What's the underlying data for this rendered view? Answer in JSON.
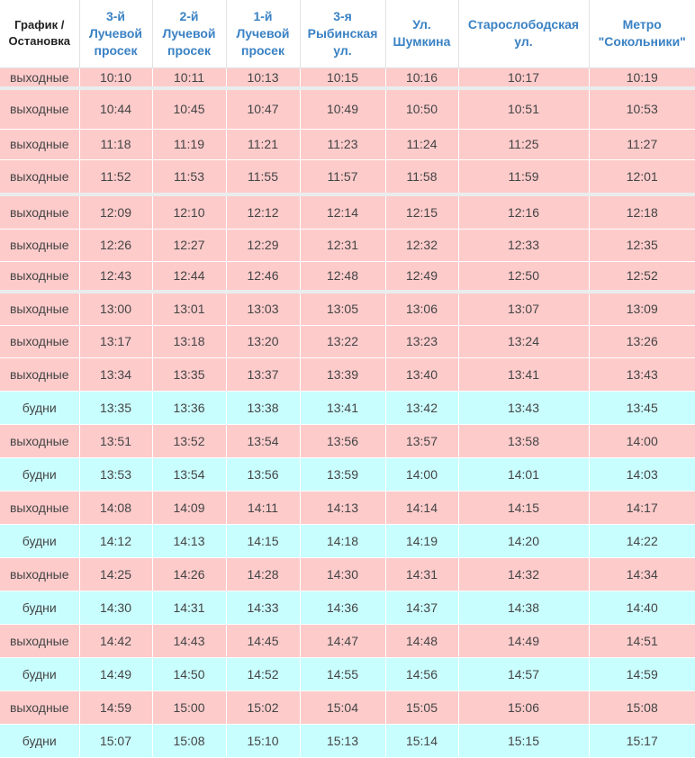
{
  "header": {
    "schedule_col": "График / Остановка",
    "stops": [
      "3-й Лучевой просек",
      "2-й Лучевой просек",
      "1-й Лучевой просек",
      "3-я Рыбинская ул.",
      "Ул. Шумкина",
      "Старослободская ул.",
      "Метро \"Сокольники\""
    ]
  },
  "colors": {
    "header_text": "#3a82c4",
    "weekend_row": "#fecbcb",
    "weekday_row": "#c9feff",
    "separator": "#e9eded"
  },
  "rows": [
    {
      "schedule": "выходные",
      "times": [
        "10:10",
        "10:11",
        "10:13",
        "10:15",
        "10:16",
        "10:17",
        "10:19"
      ]
    },
    {
      "schedule": "выходные",
      "times": [
        "10:44",
        "10:45",
        "10:47",
        "10:49",
        "10:50",
        "10:51",
        "10:53"
      ]
    },
    {
      "schedule": "выходные",
      "times": [
        "11:18",
        "11:19",
        "11:21",
        "11:23",
        "11:24",
        "11:25",
        "11:27"
      ]
    },
    {
      "schedule": "выходные",
      "times": [
        "11:52",
        "11:53",
        "11:55",
        "11:57",
        "11:58",
        "11:59",
        "12:01"
      ]
    },
    {
      "schedule": "выходные",
      "times": [
        "12:09",
        "12:10",
        "12:12",
        "12:14",
        "12:15",
        "12:16",
        "12:18"
      ]
    },
    {
      "schedule": "выходные",
      "times": [
        "12:26",
        "12:27",
        "12:29",
        "12:31",
        "12:32",
        "12:33",
        "12:35"
      ]
    },
    {
      "schedule": "выходные",
      "times": [
        "12:43",
        "12:44",
        "12:46",
        "12:48",
        "12:49",
        "12:50",
        "12:52"
      ]
    },
    {
      "schedule": "выходные",
      "times": [
        "13:00",
        "13:01",
        "13:03",
        "13:05",
        "13:06",
        "13:07",
        "13:09"
      ]
    },
    {
      "schedule": "выходные",
      "times": [
        "13:17",
        "13:18",
        "13:20",
        "13:22",
        "13:23",
        "13:24",
        "13:26"
      ]
    },
    {
      "schedule": "выходные",
      "times": [
        "13:34",
        "13:35",
        "13:37",
        "13:39",
        "13:40",
        "13:41",
        "13:43"
      ]
    },
    {
      "schedule": "будни",
      "times": [
        "13:35",
        "13:36",
        "13:38",
        "13:41",
        "13:42",
        "13:43",
        "13:45"
      ]
    },
    {
      "schedule": "выходные",
      "times": [
        "13:51",
        "13:52",
        "13:54",
        "13:56",
        "13:57",
        "13:58",
        "14:00"
      ]
    },
    {
      "schedule": "будни",
      "times": [
        "13:53",
        "13:54",
        "13:56",
        "13:59",
        "14:00",
        "14:01",
        "14:03"
      ]
    },
    {
      "schedule": "выходные",
      "times": [
        "14:08",
        "14:09",
        "14:11",
        "14:13",
        "14:14",
        "14:15",
        "14:17"
      ]
    },
    {
      "schedule": "будни",
      "times": [
        "14:12",
        "14:13",
        "14:15",
        "14:18",
        "14:19",
        "14:20",
        "14:22"
      ]
    },
    {
      "schedule": "выходные",
      "times": [
        "14:25",
        "14:26",
        "14:28",
        "14:30",
        "14:31",
        "14:32",
        "14:34"
      ]
    },
    {
      "schedule": "будни",
      "times": [
        "14:30",
        "14:31",
        "14:33",
        "14:36",
        "14:37",
        "14:38",
        "14:40"
      ]
    },
    {
      "schedule": "выходные",
      "times": [
        "14:42",
        "14:43",
        "14:45",
        "14:47",
        "14:48",
        "14:49",
        "14:51"
      ]
    },
    {
      "schedule": "будни",
      "times": [
        "14:49",
        "14:50",
        "14:52",
        "14:55",
        "14:56",
        "14:57",
        "14:59"
      ]
    },
    {
      "schedule": "выходные",
      "times": [
        "14:59",
        "15:00",
        "15:02",
        "15:04",
        "15:05",
        "15:06",
        "15:08"
      ]
    },
    {
      "schedule": "будни",
      "times": [
        "15:07",
        "15:08",
        "15:10",
        "15:13",
        "15:14",
        "15:15",
        "15:17"
      ]
    }
  ]
}
